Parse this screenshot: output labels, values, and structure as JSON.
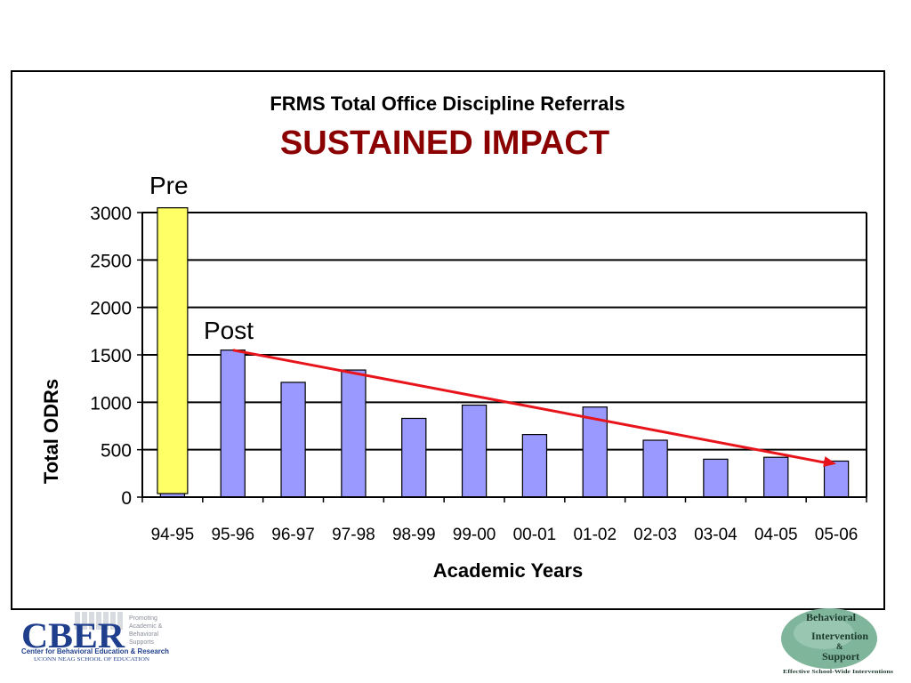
{
  "chart_data": {
    "type": "bar",
    "title": "FRMS Total Office Discipline Referrals",
    "subtitle": "SUSTAINED IMPACT",
    "xlabel": "Academic Years",
    "ylabel": "Total ODRs",
    "categories": [
      "94-95",
      "95-96",
      "96-97",
      "97-98",
      "98-99",
      "99-00",
      "00-01",
      "01-02",
      "02-03",
      "03-04",
      "04-05",
      "05-06"
    ],
    "values": [
      3050,
      1550,
      1210,
      1340,
      830,
      970,
      660,
      950,
      600,
      400,
      420,
      380
    ],
    "ylim": [
      0,
      3000
    ],
    "yticks": [
      0,
      500,
      1000,
      1500,
      2000,
      2500,
      3000
    ],
    "grid": true,
    "highlight_index": 0,
    "annotations": {
      "pre": "Pre",
      "post": "Post"
    },
    "trend": {
      "from_index": 1,
      "from_value": 1550,
      "to_index": 11,
      "to_value": 350
    },
    "colors": {
      "bar": "#9999ff",
      "highlight": "#ffff66",
      "trend": "#e8141c",
      "subtitle": "#8b0000"
    }
  },
  "logos": {
    "left": {
      "acronym": "CBER",
      "tagline": [
        "Promoting",
        "Academic &",
        "Behavioral",
        "Supports"
      ],
      "name": "Center for Behavioral Education & Research",
      "school": "UCONN NEAG SCHOOL OF EDUCATION"
    },
    "right": {
      "line1": "Behavioral",
      "line2": "Intervention",
      "line3": "&",
      "line4": "Support",
      "tagline": "Effective School-Wide Interventions"
    }
  }
}
